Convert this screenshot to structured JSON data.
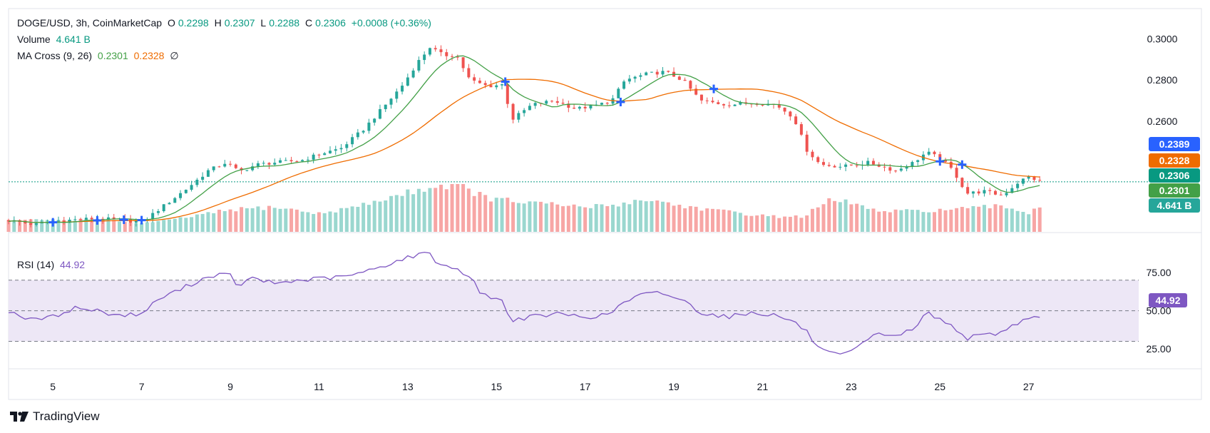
{
  "header": {
    "symbol": "DOGE/USD, 3h, CoinMarketCap",
    "o_label": "O",
    "o": "0.2298",
    "h_label": "H",
    "h": "0.2307",
    "l_label": "L",
    "l": "0.2288",
    "c_label": "C",
    "c": "0.2306",
    "change": "+0.0008 (+0.36%)",
    "volume_label": "Volume",
    "volume": "4.641 B",
    "ma_label": "MA Cross (9, 26)",
    "ma_fast": "0.2301",
    "ma_slow": "0.2328",
    "ma_icon": "∅",
    "rsi_label": "RSI (14)",
    "rsi": "44.92"
  },
  "badges": {
    "b1": "0.2389",
    "b2": "0.2328",
    "b3": "0.2306",
    "b4": "0.2301",
    "b5": "4.641 B",
    "rsi": "44.92"
  },
  "branding": {
    "name": "TradingView"
  },
  "colors": {
    "up": "#26a69a",
    "down": "#ef5350",
    "vol_up": "#9ad7cf",
    "vol_down": "#f7a6a5",
    "ma_fast": "#43a047",
    "ma_slow": "#ef6c00",
    "rsi": "#7e57c2",
    "rsi_band": "#ede7f6",
    "badge_blue": "#2962ff",
    "badge_orange": "#ef6c00",
    "badge_teal": "#089981",
    "badge_green": "#43a047"
  },
  "chart_data": [
    {
      "type": "candlestick",
      "title": "DOGE/USD, 3h, CoinMarketCap",
      "x_ticks": [
        "5",
        "7",
        "9",
        "11",
        "13",
        "15",
        "17",
        "19",
        "21",
        "23",
        "25",
        "27"
      ],
      "x_range": [
        4,
        27.6
      ],
      "y_ticks": [
        "0.3000",
        "0.2800",
        "0.2600"
      ],
      "ylim": [
        0.206,
        0.305
      ],
      "last_close": 0.2306,
      "close_anchors": [
        [
          4.0,
          0.212
        ],
        [
          4.6,
          0.2098
        ],
        [
          5.0,
          0.2115
        ],
        [
          5.6,
          0.2124
        ],
        [
          6.0,
          0.2128
        ],
        [
          6.6,
          0.212
        ],
        [
          7.0,
          0.211
        ],
        [
          7.5,
          0.219
        ],
        [
          8.0,
          0.227
        ],
        [
          8.5,
          0.236
        ],
        [
          8.9,
          0.24
        ],
        [
          9.2,
          0.2355
        ],
        [
          9.6,
          0.239
        ],
        [
          10.0,
          0.24
        ],
        [
          10.6,
          0.241
        ],
        [
          11.0,
          0.244
        ],
        [
          11.5,
          0.247
        ],
        [
          12.0,
          0.256
        ],
        [
          12.5,
          0.268
        ],
        [
          12.9,
          0.278
        ],
        [
          13.2,
          0.288
        ],
        [
          13.5,
          0.296
        ],
        [
          13.8,
          0.292
        ],
        [
          14.1,
          0.292
        ],
        [
          14.4,
          0.28
        ],
        [
          14.8,
          0.277
        ],
        [
          15.2,
          0.278
        ],
        [
          15.3,
          0.26
        ],
        [
          15.8,
          0.268
        ],
        [
          16.3,
          0.27
        ],
        [
          16.8,
          0.266
        ],
        [
          17.3,
          0.268
        ],
        [
          17.6,
          0.27
        ],
        [
          17.9,
          0.28
        ],
        [
          18.4,
          0.283
        ],
        [
          18.8,
          0.284
        ],
        [
          19.2,
          0.28
        ],
        [
          19.6,
          0.27
        ],
        [
          20.2,
          0.268
        ],
        [
          20.8,
          0.269
        ],
        [
          21.3,
          0.268
        ],
        [
          21.7,
          0.262
        ],
        [
          22.0,
          0.246
        ],
        [
          22.3,
          0.239
        ],
        [
          22.8,
          0.238
        ],
        [
          23.4,
          0.24
        ],
        [
          24.0,
          0.236
        ],
        [
          24.4,
          0.24
        ],
        [
          24.7,
          0.245
        ],
        [
          25.0,
          0.242
        ],
        [
          25.3,
          0.236
        ],
        [
          25.6,
          0.225
        ],
        [
          26.0,
          0.226
        ],
        [
          26.4,
          0.224
        ],
        [
          26.8,
          0.231
        ],
        [
          27.0,
          0.233
        ],
        [
          27.3,
          0.2306
        ]
      ],
      "ma_fast_name": "MA Cross (9, 26)",
      "ma_fast_last": 0.2301,
      "ma_slow_last": 0.2328,
      "cross_markers_x": [
        5.0,
        6.0,
        6.6,
        7.0,
        15.2,
        17.8,
        19.9,
        25.0,
        25.5
      ]
    },
    {
      "type": "bar",
      "title": "Volume",
      "last_value": "4.641 B",
      "note": "relative volume, last bar = 4.641 B",
      "volume_anchors": [
        [
          4.0,
          0.24
        ],
        [
          6.0,
          0.26
        ],
        [
          7.0,
          0.18
        ],
        [
          7.6,
          0.24
        ],
        [
          9.0,
          0.46
        ],
        [
          10.0,
          0.52
        ],
        [
          11.0,
          0.38
        ],
        [
          12.0,
          0.56
        ],
        [
          12.6,
          0.72
        ],
        [
          13.4,
          0.92
        ],
        [
          14.1,
          1.0
        ],
        [
          14.8,
          0.7
        ],
        [
          15.6,
          0.62
        ],
        [
          16.4,
          0.56
        ],
        [
          17.0,
          0.52
        ],
        [
          17.6,
          0.56
        ],
        [
          18.4,
          0.68
        ],
        [
          19.2,
          0.54
        ],
        [
          20.2,
          0.42
        ],
        [
          21.2,
          0.32
        ],
        [
          21.9,
          0.32
        ],
        [
          22.5,
          0.64
        ],
        [
          23.0,
          0.62
        ],
        [
          23.6,
          0.42
        ],
        [
          24.6,
          0.44
        ],
        [
          25.5,
          0.48
        ],
        [
          26.4,
          0.54
        ],
        [
          27.0,
          0.4
        ],
        [
          27.3,
          0.56
        ]
      ],
      "ylim": [
        0,
        1
      ]
    },
    {
      "type": "line",
      "title": "RSI (14)",
      "y_ticks": [
        "75.00",
        "50.00",
        "25.00"
      ],
      "band": [
        30,
        70
      ],
      "ylim": [
        12,
        97
      ],
      "last_value": 44.92,
      "rsi_anchors": [
        [
          4.0,
          50
        ],
        [
          4.5,
          44
        ],
        [
          5.0,
          46
        ],
        [
          5.5,
          52
        ],
        [
          6.0,
          50
        ],
        [
          6.5,
          47
        ],
        [
          7.0,
          48
        ],
        [
          7.4,
          58
        ],
        [
          7.8,
          63
        ],
        [
          8.3,
          70
        ],
        [
          8.7,
          74
        ],
        [
          9.0,
          73
        ],
        [
          9.1,
          66
        ],
        [
          9.5,
          71
        ],
        [
          10.0,
          68
        ],
        [
          10.6,
          70
        ],
        [
          11.0,
          71
        ],
        [
          11.5,
          72
        ],
        [
          12.0,
          75
        ],
        [
          12.5,
          80
        ],
        [
          13.0,
          85
        ],
        [
          13.5,
          88
        ],
        [
          13.7,
          80
        ],
        [
          14.1,
          78
        ],
        [
          14.4,
          72
        ],
        [
          14.7,
          60
        ],
        [
          15.1,
          58
        ],
        [
          15.3,
          44
        ],
        [
          15.8,
          46
        ],
        [
          16.4,
          48
        ],
        [
          17.0,
          46
        ],
        [
          17.5,
          47
        ],
        [
          17.8,
          54
        ],
        [
          18.2,
          60
        ],
        [
          18.7,
          62
        ],
        [
          19.2,
          57
        ],
        [
          19.6,
          49
        ],
        [
          20.2,
          46
        ],
        [
          20.8,
          49
        ],
        [
          21.3,
          47
        ],
        [
          21.7,
          43
        ],
        [
          22.0,
          36
        ],
        [
          22.3,
          24
        ],
        [
          22.8,
          20
        ],
        [
          23.2,
          27
        ],
        [
          23.6,
          35
        ],
        [
          24.1,
          34
        ],
        [
          24.5,
          40
        ],
        [
          24.7,
          50
        ],
        [
          25.0,
          44
        ],
        [
          25.3,
          40
        ],
        [
          25.6,
          32
        ],
        [
          26.0,
          34
        ],
        [
          26.4,
          36
        ],
        [
          26.8,
          43
        ],
        [
          27.0,
          46
        ],
        [
          27.3,
          44.92
        ]
      ]
    }
  ]
}
